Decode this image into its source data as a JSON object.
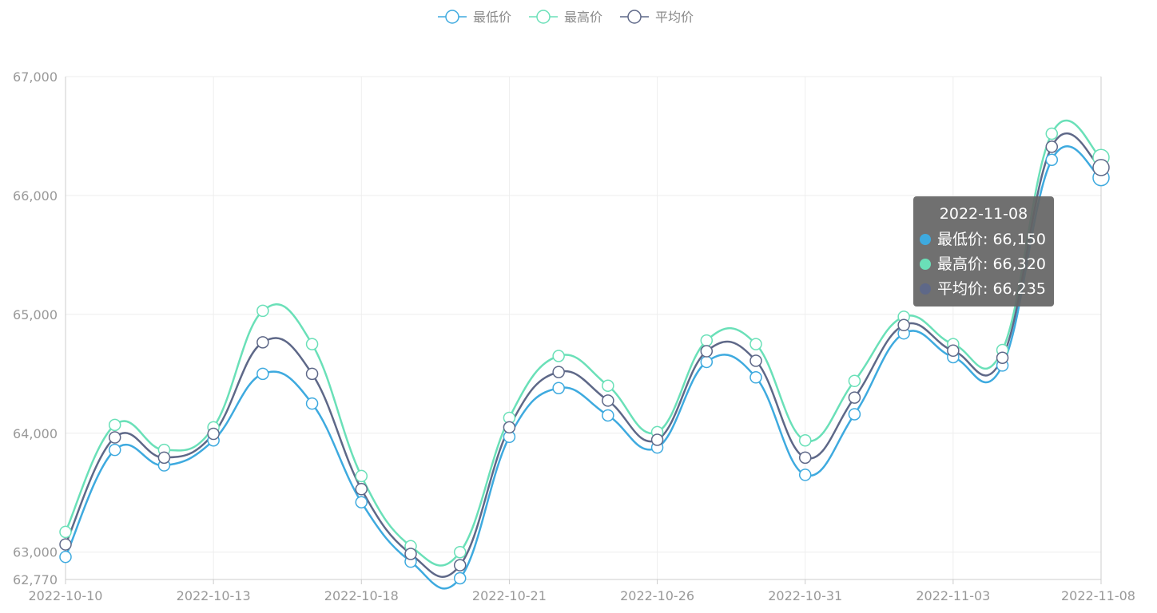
{
  "chart_data": {
    "type": "line",
    "title": "",
    "xlabel": "",
    "ylabel": "",
    "x": [
      "2022-10-10",
      "2022-10-11",
      "2022-10-12",
      "2022-10-13",
      "2022-10-14",
      "2022-10-17",
      "2022-10-18",
      "2022-10-19",
      "2022-10-20",
      "2022-10-21",
      "2022-10-24",
      "2022-10-25",
      "2022-10-26",
      "2022-10-27",
      "2022-10-28",
      "2022-10-31",
      "2022-11-01",
      "2022-11-02",
      "2022-11-03",
      "2022-11-04",
      "2022-11-07",
      "2022-11-08"
    ],
    "x_tick_labels": [
      "2022-10-10",
      "2022-10-13",
      "2022-10-18",
      "2022-10-21",
      "2022-10-26",
      "2022-10-31",
      "2022-11-03",
      "2022-11-08"
    ],
    "y_tick_labels": [
      "62,770",
      "63,000",
      "64,000",
      "65,000",
      "66,000",
      "67,000"
    ],
    "ylim": [
      62770,
      67000
    ],
    "grid": true,
    "legend_position": "top-center",
    "series": [
      {
        "name": "最低价",
        "color": "#3eaadf",
        "values": [
          62960,
          63860,
          63730,
          63940,
          64500,
          64250,
          63420,
          62920,
          62780,
          63970,
          64380,
          64150,
          63880,
          64600,
          64470,
          63650,
          64160,
          64840,
          64640,
          64570,
          66300,
          66150
        ]
      },
      {
        "name": "最高价",
        "color": "#6ae0b8",
        "values": [
          63170,
          64070,
          63860,
          64050,
          65030,
          64750,
          63640,
          63050,
          63000,
          64130,
          64650,
          64400,
          64010,
          64780,
          64750,
          63940,
          64440,
          64980,
          64750,
          64700,
          66520,
          66320
        ]
      },
      {
        "name": "平均价",
        "color": "#5e6888",
        "values": [
          63065,
          63965,
          63795,
          63995,
          64765,
          64500,
          63530,
          62985,
          62890,
          64050,
          64515,
          64275,
          63945,
          64690,
          64610,
          63795,
          64300,
          64910,
          64695,
          64635,
          66410,
          66235
        ]
      }
    ],
    "tooltip": {
      "title": "2022-11-08",
      "rows": [
        {
          "label": "最低价: 66,150",
          "color": "#3eaadf"
        },
        {
          "label": "最高价: 66,320",
          "color": "#6ae0b8"
        },
        {
          "label": "平均价: 66,235",
          "color": "#5e6888"
        }
      ]
    }
  }
}
